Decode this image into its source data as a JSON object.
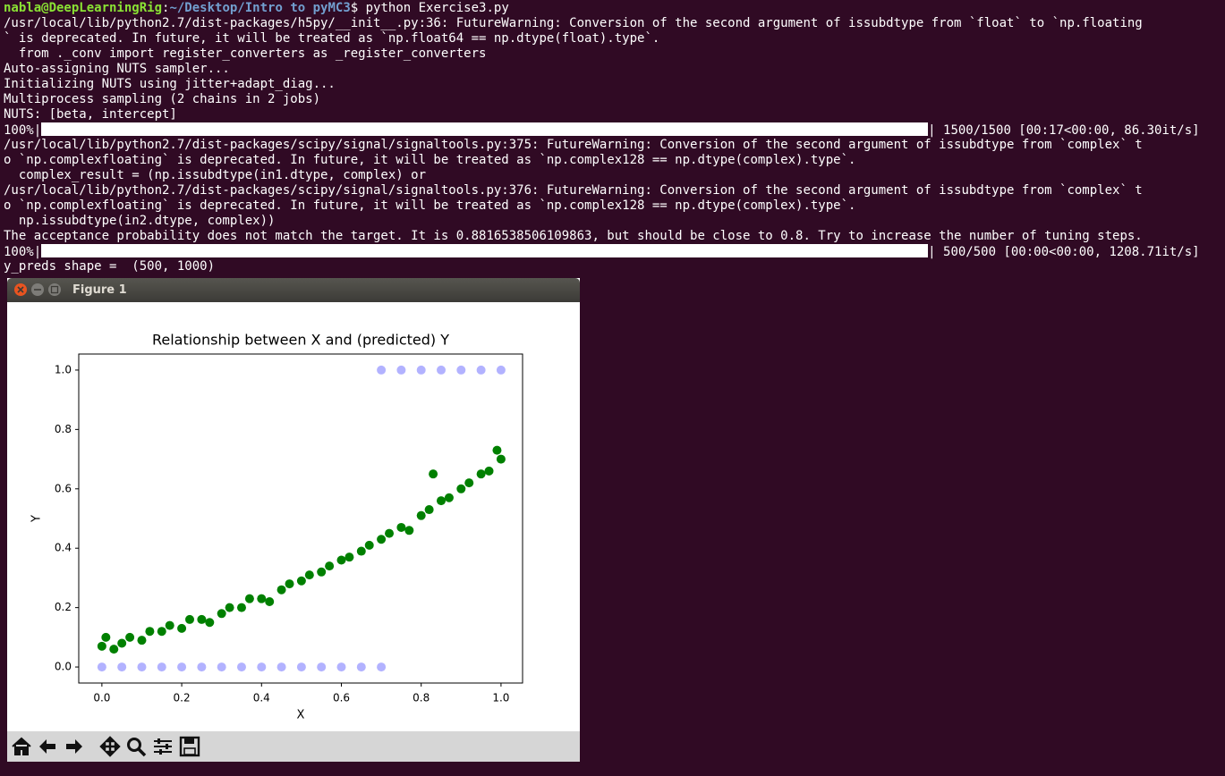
{
  "terminal": {
    "prompt": {
      "user": "nabla@DeepLearningRig",
      "sep": ":",
      "path": "~/Desktop/Intro to pyMC3",
      "command": "$ python Exercise3.py"
    },
    "lines": [
      {
        "text": "/usr/local/lib/python2.7/dist-packages/h5py/__init__.py:36: FutureWarning: Conversion of the second argument of issubdtype from `float` to `np.floating"
      },
      {
        "text": "` is deprecated. In future, it will be treated as `np.float64 == np.dtype(float).type`."
      },
      {
        "text": "  from ._conv import register_converters as _register_converters"
      },
      {
        "text": "Auto-assigning NUTS sampler..."
      },
      {
        "text": "Initializing NUTS using jitter+adapt_diag..."
      },
      {
        "text": "Multiprocess sampling (2 chains in 2 jobs)"
      },
      {
        "text": "NUTS: [beta, intercept]"
      },
      {
        "progress": 100,
        "progress_label": "100%|",
        "status": "| 1500/1500 [00:17<00:00, 86.30it/s]"
      },
      {
        "text": "/usr/local/lib/python2.7/dist-packages/scipy/signal/signaltools.py:375: FutureWarning: Conversion of the second argument of issubdtype from `complex` t"
      },
      {
        "text": "o `np.complexfloating` is deprecated. In future, it will be treated as `np.complex128 == np.dtype(complex).type`."
      },
      {
        "text": "  complex_result = (np.issubdtype(in1.dtype, complex) or"
      },
      {
        "text": "/usr/local/lib/python2.7/dist-packages/scipy/signal/signaltools.py:376: FutureWarning: Conversion of the second argument of issubdtype from `complex` t"
      },
      {
        "text": "o `np.complexfloating` is deprecated. In future, it will be treated as `np.complex128 == np.dtype(complex).type`."
      },
      {
        "text": "  np.issubdtype(in2.dtype, complex))"
      },
      {
        "text": "The acceptance probability does not match the target. It is 0.8816538506109863, but should be close to 0.8. Try to increase the number of tuning steps."
      },
      {
        "progress": 100,
        "progress_label": "100%|",
        "status": "| 500/500 [00:00<00:00, 1208.71it/s]"
      },
      {
        "text": "y_preds shape =  (500, 1000)"
      }
    ]
  },
  "window": {
    "title": "Figure 1"
  },
  "chart_data": {
    "type": "scatter",
    "title": "Relationship between X and (predicted) Y",
    "x_label": "X",
    "y_label": "Y",
    "xlim": [
      -0.058,
      1.054
    ],
    "ylim": [
      -0.054,
      1.054
    ],
    "xticks": [
      {
        "value": 0,
        "label": "0.0"
      },
      {
        "value": 0.2,
        "label": "0.2"
      },
      {
        "value": 0.4,
        "label": "0.4"
      },
      {
        "value": 0.6,
        "label": "0.6"
      },
      {
        "value": 0.8,
        "label": "0.8"
      },
      {
        "value": 1,
        "label": "1.0"
      }
    ],
    "yticks": [
      {
        "value": 0,
        "label": "0.0"
      },
      {
        "value": 0.2,
        "label": "0.2"
      },
      {
        "value": 0.4,
        "label": "0.4"
      },
      {
        "value": 0.6,
        "label": "0.6"
      },
      {
        "value": 0.8,
        "label": "0.8"
      },
      {
        "value": 1,
        "label": "1.0"
      }
    ],
    "series": [
      {
        "color": "#008000",
        "opacity": 1,
        "x": [
          0,
          0.01,
          0.03,
          0.05,
          0.07,
          0.1,
          0.12,
          0.15,
          0.17,
          0.2,
          0.22,
          0.25,
          0.27,
          0.3,
          0.32,
          0.35,
          0.37,
          0.4,
          0.42,
          0.45,
          0.47,
          0.5,
          0.52,
          0.55,
          0.57,
          0.6,
          0.62,
          0.65,
          0.67,
          0.7,
          0.72,
          0.75,
          0.77,
          0.8,
          0.82,
          0.83,
          0.85,
          0.87,
          0.9,
          0.92,
          0.95,
          0.97,
          1,
          0.99
        ],
        "values": [
          0.07,
          0.1,
          0.06,
          0.08,
          0.1,
          0.09,
          0.12,
          0.12,
          0.14,
          0.13,
          0.16,
          0.16,
          0.15,
          0.18,
          0.2,
          0.2,
          0.23,
          0.23,
          0.22,
          0.26,
          0.28,
          0.29,
          0.31,
          0.32,
          0.34,
          0.36,
          0.37,
          0.39,
          0.41,
          0.43,
          0.45,
          0.47,
          0.46,
          0.51,
          0.53,
          0.65,
          0.56,
          0.57,
          0.6,
          0.62,
          0.65,
          0.66,
          0.7,
          0.73
        ]
      },
      {
        "color": "#0000ff",
        "opacity": 0.3,
        "x": [
          0,
          0.05,
          0.1,
          0.15,
          0.2,
          0.25,
          0.3,
          0.35,
          0.4,
          0.45,
          0.5,
          0.55,
          0.6,
          0.65,
          0.7,
          0.7,
          0.75,
          0.8,
          0.85,
          0.9,
          0.95,
          1
        ],
        "values": [
          0,
          0,
          0,
          0,
          0,
          0,
          0,
          0,
          0,
          0,
          0,
          0,
          0,
          0,
          0,
          1,
          1,
          1,
          1,
          1,
          1,
          1
        ]
      }
    ]
  }
}
